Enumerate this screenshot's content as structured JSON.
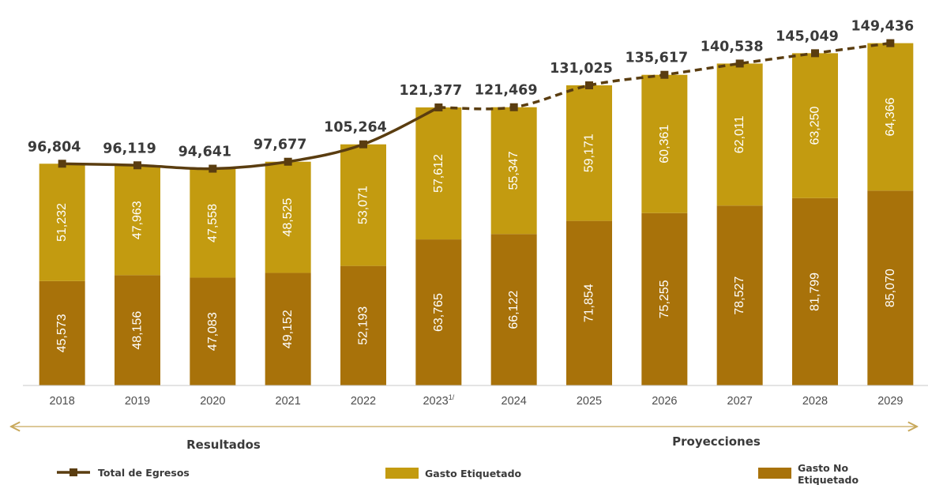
{
  "chart_data": {
    "type": "bar",
    "stacked": true,
    "categories": [
      "2018",
      "2019",
      "2020",
      "2021",
      "2022",
      "2023",
      "2024",
      "2025",
      "2026",
      "2027",
      "2028",
      "2029"
    ],
    "category_superscripts": [
      "",
      "",
      "",
      "",
      "",
      "1/",
      "",
      "",
      "",
      "",
      "",
      ""
    ],
    "series": [
      {
        "name": "Gasto No Etiquetado",
        "color": "#a8720a",
        "values": [
          45573,
          48156,
          47083,
          49152,
          52193,
          63765,
          66122,
          71854,
          75255,
          78527,
          81799,
          85070
        ],
        "labels": [
          "45,573",
          "48,156",
          "47,083",
          "49,152",
          "52,193",
          "63,765",
          "66,122",
          "71,854",
          "75,255",
          "78,527",
          "81,799",
          "85,070"
        ]
      },
      {
        "name": "Gasto Etiquetado",
        "color": "#c39b10",
        "values": [
          51232,
          47963,
          47558,
          48525,
          53071,
          57612,
          55347,
          59171,
          60361,
          62011,
          63250,
          64366
        ],
        "labels": [
          "51,232",
          "47,963",
          "47,558",
          "48,525",
          "53,071",
          "57,612",
          "55,347",
          "59,171",
          "60,361",
          "62,011",
          "63,250",
          "64,366"
        ]
      }
    ],
    "line_series": {
      "name": "Total de Egresos",
      "color": "#5a3d10",
      "values": [
        96804,
        96119,
        94641,
        97677,
        105264,
        121377,
        121469,
        131025,
        135617,
        140538,
        145049,
        149436
      ],
      "labels": [
        "96,804",
        "96,119",
        "94,641",
        "97,677",
        "105,264",
        "121,377",
        "121,469",
        "131,025",
        "135,617",
        "140,538",
        "145,049",
        "149,436"
      ],
      "solid_through": "2023",
      "dashed_after": "2023"
    },
    "periods": [
      {
        "label": "Resultados",
        "from": "2018",
        "to": "2023"
      },
      {
        "label": "Proyecciones",
        "from": "2023",
        "to": "2029"
      }
    ],
    "ylim": [
      0,
      160000
    ],
    "grid": false,
    "legend_position": "bottom",
    "title": "",
    "xlabel": "",
    "ylabel": ""
  },
  "legend": {
    "total_label": "Total de Egresos",
    "etiquetado_label": "Gasto Etiquetado",
    "no_etiquetado_line1": "Gasto No",
    "no_etiquetado_line2": "Etiquetado"
  },
  "periods": {
    "resultados": "Resultados",
    "proyecciones": "Proyecciones"
  }
}
